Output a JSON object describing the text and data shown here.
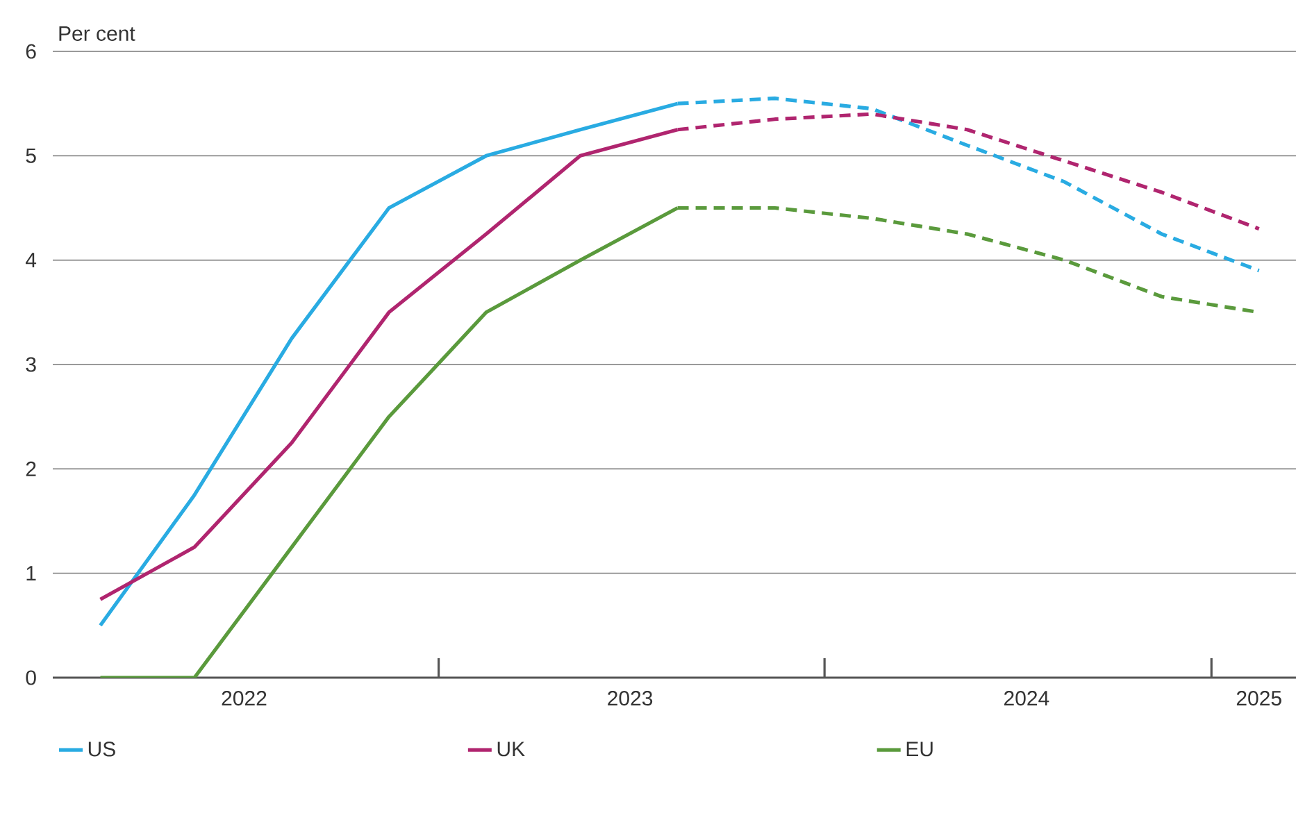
{
  "chart_data": {
    "type": "line",
    "ylabel": "Per cent",
    "x": [
      "2022-02-15",
      "2022-05-15",
      "2022-08-15",
      "2022-11-15",
      "2023-02-15",
      "2023-05-15",
      "2023-08-15",
      "2023-11-15",
      "2024-02-15",
      "2024-05-15",
      "2024-08-15",
      "2024-11-15",
      "2025-02-15"
    ],
    "series": [
      {
        "name": "US",
        "color": "#29abe2",
        "line_style": "solid",
        "values": [
          0.5,
          1.75,
          3.25,
          4.5,
          5.0,
          5.25,
          5.5,
          null,
          null,
          null,
          null,
          null,
          null
        ]
      },
      {
        "color": "#29abe2",
        "line_style": "dashed",
        "values": [
          null,
          null,
          null,
          null,
          null,
          null,
          5.5,
          5.55,
          5.45,
          5.1,
          4.75,
          4.25,
          3.9
        ]
      },
      {
        "name": "UK",
        "color": "#b0256f",
        "line_style": "solid",
        "values": [
          0.75,
          1.25,
          2.25,
          3.5,
          4.25,
          5.0,
          5.25,
          null,
          null,
          null,
          null,
          null,
          null
        ]
      },
      {
        "color": "#b0256f",
        "line_style": "dashed",
        "values": [
          null,
          null,
          null,
          null,
          null,
          null,
          5.25,
          5.35,
          5.4,
          5.25,
          4.95,
          4.65,
          4.3
        ]
      },
      {
        "name": "EU",
        "color": "#5a9a3c",
        "line_style": "solid",
        "values": [
          0,
          0,
          1.25,
          2.5,
          3.5,
          4.0,
          4.5,
          null,
          null,
          null,
          null,
          null,
          null
        ]
      },
      {
        "color": "#5a9a3c",
        "line_style": "dashed",
        "values": [
          null,
          null,
          null,
          null,
          null,
          null,
          4.5,
          4.5,
          4.4,
          4.25,
          4.0,
          3.65,
          3.5
        ]
      }
    ],
    "xlim": [
      "2022-01-01",
      "2025-03-22"
    ],
    "xticks": [
      {
        "value": "2022-07-01",
        "label": "2022"
      },
      {
        "value": "2023-01-01",
        "label": null
      },
      {
        "value": "2023-07-01",
        "label": "2023"
      },
      {
        "value": "2024-01-01",
        "label": null
      },
      {
        "value": "2024-07-10",
        "label": "2024"
      },
      {
        "value": "2025-01-01",
        "label": null
      },
      {
        "value": "2025-02-15",
        "label": "2025"
      }
    ],
    "ylim": [
      0,
      6
    ],
    "yticks": [
      0,
      1,
      2,
      3,
      4,
      5,
      6
    ],
    "grid": "y",
    "legend": "bottom"
  }
}
